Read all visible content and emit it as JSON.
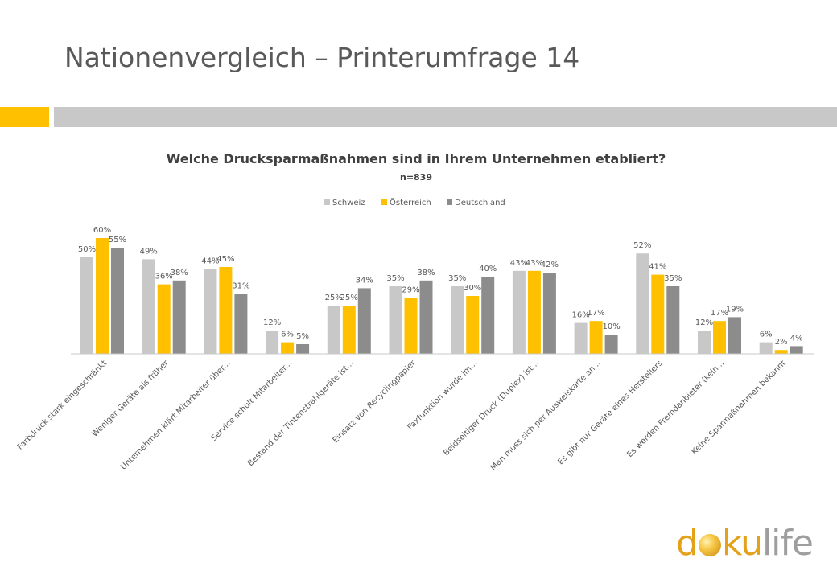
{
  "slide": {
    "title": "Nationenvergleich – Printerumfrage 14",
    "accent_color": "#FFC000",
    "band_color": "#C8C8C8"
  },
  "logo": {
    "text": "dokulife",
    "colors": {
      "primary": "#E3A21A",
      "secondary": "#9E9E9E"
    }
  },
  "chart_data": {
    "type": "bar",
    "title": "Welche Drucksparmaßnahmen sind in Ihrem Unternehmen etabliert?",
    "subtitle": "n=839",
    "xlabel": "",
    "ylabel": "",
    "ylim": [
      0,
      60
    ],
    "grid": false,
    "legend_position": "top",
    "value_suffix": "%",
    "categories": [
      "Farbdruck stark eingeschränkt",
      "Weniger Geräte als früher",
      "Unternehmen klärt Mitarbeiter über...",
      "Service schult Mitarbeiter...",
      "Bestand der Tintenstrahlgeräte ist...",
      "Einsatz von Recyclingpapier",
      "Faxfunktion wurde im...",
      "Beidseitiger Druck (Duplex) ist...",
      "Man muss sich per Ausweiskarte an...",
      "Es gibt nur Geräte eines Herstellers",
      "Es werden Fremdanbieter (kein...",
      "Keine Sparmaßnahmen bekannt"
    ],
    "series": [
      {
        "name": "Schweiz",
        "color": "#C8C8C8",
        "values": [
          50,
          49,
          44,
          12,
          25,
          35,
          35,
          43,
          16,
          52,
          12,
          6
        ]
      },
      {
        "name": "Österreich",
        "color": "#FFC000",
        "values": [
          60,
          36,
          45,
          6,
          25,
          29,
          30,
          43,
          17,
          41,
          17,
          2
        ]
      },
      {
        "name": "Deutschland",
        "color": "#8C8C8C",
        "values": [
          55,
          38,
          31,
          5,
          34,
          38,
          40,
          42,
          10,
          35,
          19,
          4
        ]
      }
    ]
  }
}
